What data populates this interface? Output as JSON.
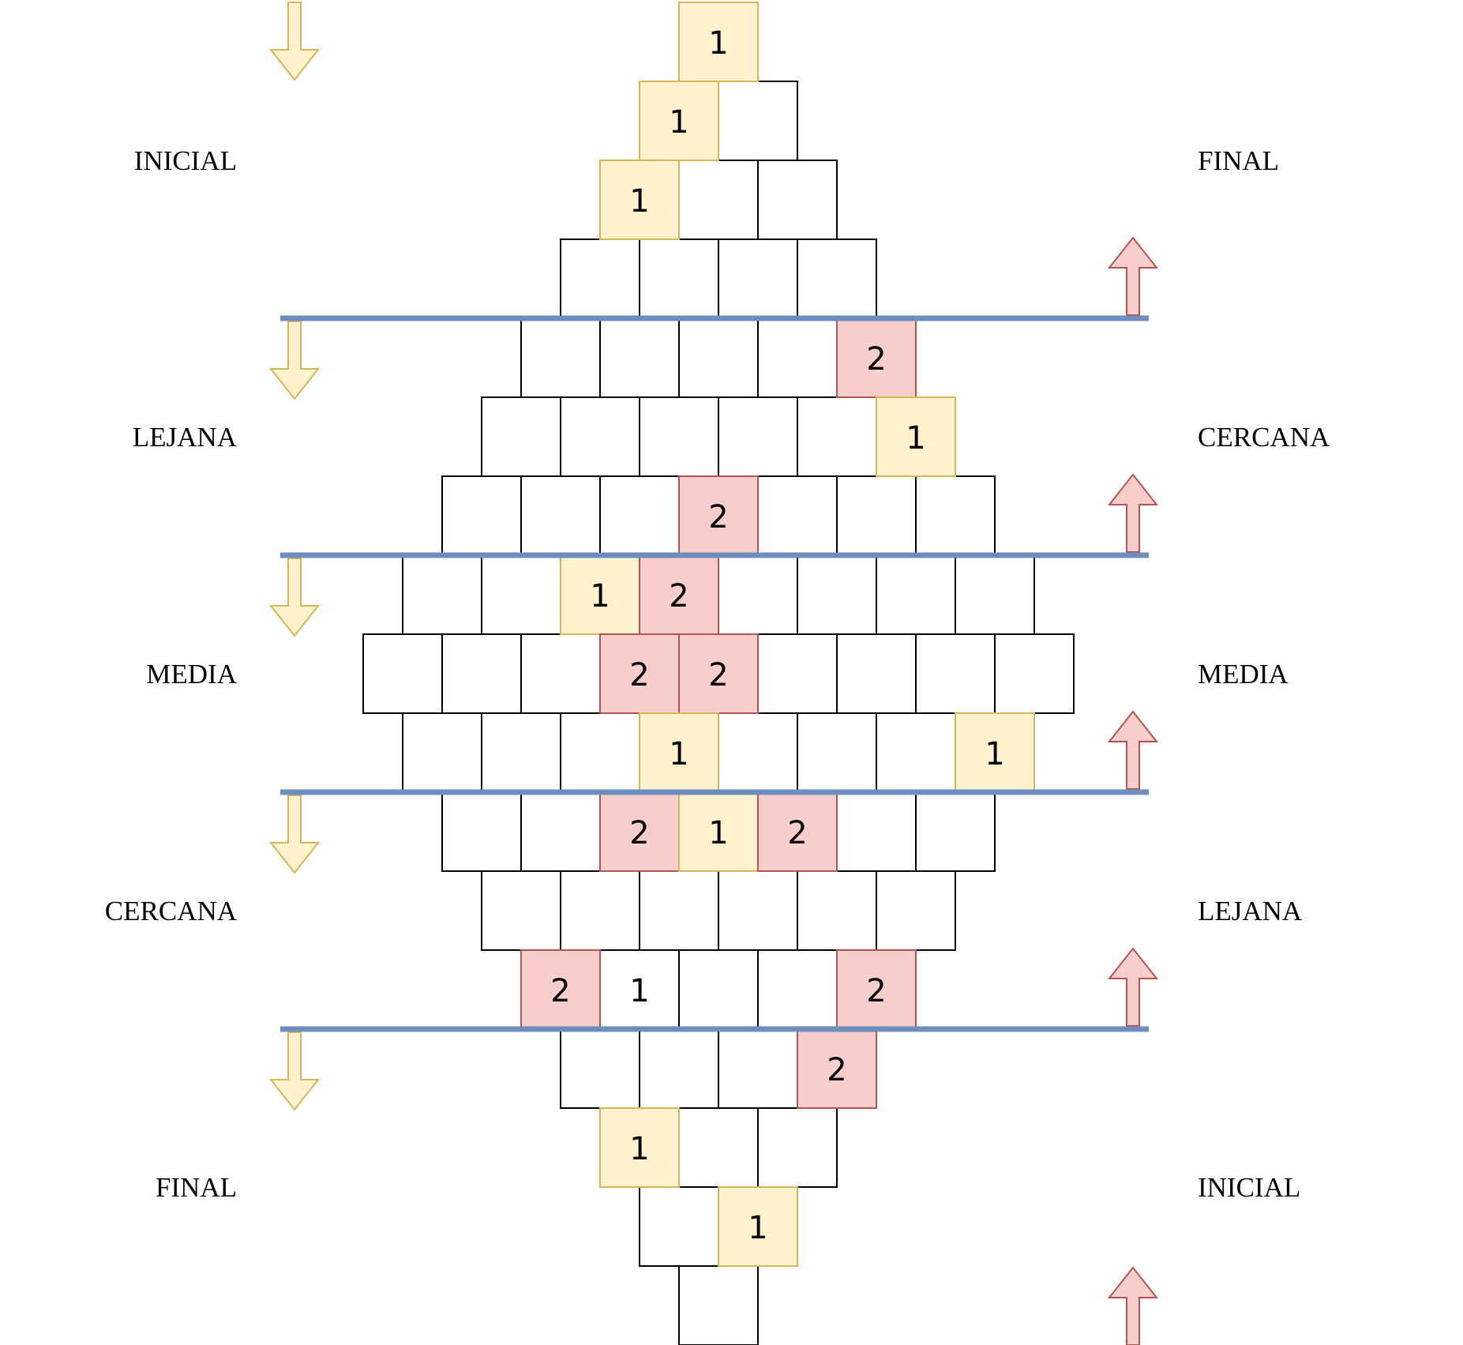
{
  "colors": {
    "yellow_fill": "#fff2cc",
    "yellow_stroke": "#d6b656",
    "red_fill": "#f8cecc",
    "red_stroke": "#b85450",
    "divider": "#6c8ebf",
    "grid_stroke": "#000000"
  },
  "zones_left": [
    {
      "label": "INICIAL"
    },
    {
      "label": "LEJANA"
    },
    {
      "label": "MEDIA"
    },
    {
      "label": "CERCANA"
    },
    {
      "label": "FINAL"
    }
  ],
  "zones_right": [
    {
      "label": "FINAL"
    },
    {
      "label": "CERCANA"
    },
    {
      "label": "MEDIA"
    },
    {
      "label": "LEJANA"
    },
    {
      "label": "INICIAL"
    }
  ],
  "arrows": {
    "left": {
      "direction": "down",
      "icon": "arrow-down-icon",
      "color": "yellow",
      "count": 5
    },
    "right": {
      "direction": "up",
      "icon": "arrow-up-icon",
      "color": "red",
      "count": 5
    }
  },
  "rows": [
    {
      "cells": [
        {
          "text": "1",
          "style": "yellow"
        }
      ]
    },
    {
      "cells": [
        {
          "text": "1",
          "style": "yellow"
        },
        {
          "text": "",
          "style": "plain"
        }
      ]
    },
    {
      "cells": [
        {
          "text": "1",
          "style": "yellow"
        },
        {
          "text": "",
          "style": "plain"
        },
        {
          "text": "",
          "style": "plain"
        }
      ]
    },
    {
      "cells": [
        {
          "text": "",
          "style": "plain"
        },
        {
          "text": "",
          "style": "plain"
        },
        {
          "text": "",
          "style": "plain"
        },
        {
          "text": "",
          "style": "plain"
        }
      ]
    },
    {
      "cells": [
        {
          "text": "",
          "style": "plain"
        },
        {
          "text": "",
          "style": "plain"
        },
        {
          "text": "",
          "style": "plain"
        },
        {
          "text": "",
          "style": "plain"
        },
        {
          "text": "2",
          "style": "red"
        }
      ]
    },
    {
      "cells": [
        {
          "text": "",
          "style": "plain"
        },
        {
          "text": "",
          "style": "plain"
        },
        {
          "text": "",
          "style": "plain"
        },
        {
          "text": "",
          "style": "plain"
        },
        {
          "text": "",
          "style": "plain"
        },
        {
          "text": "1",
          "style": "yellow"
        }
      ]
    },
    {
      "cells": [
        {
          "text": "",
          "style": "plain"
        },
        {
          "text": "",
          "style": "plain"
        },
        {
          "text": "",
          "style": "plain"
        },
        {
          "text": "2",
          "style": "red"
        },
        {
          "text": "",
          "style": "plain"
        },
        {
          "text": "",
          "style": "plain"
        },
        {
          "text": "",
          "style": "plain"
        }
      ]
    },
    {
      "cells": [
        {
          "text": "",
          "style": "plain"
        },
        {
          "text": "",
          "style": "plain"
        },
        {
          "text": "1",
          "style": "yellow"
        },
        {
          "text": "2",
          "style": "red"
        },
        {
          "text": "",
          "style": "plain"
        },
        {
          "text": "",
          "style": "plain"
        },
        {
          "text": "",
          "style": "plain"
        },
        {
          "text": "",
          "style": "plain"
        }
      ]
    },
    {
      "cells": [
        {
          "text": "",
          "style": "plain"
        },
        {
          "text": "",
          "style": "plain"
        },
        {
          "text": "",
          "style": "plain"
        },
        {
          "text": "2",
          "style": "red"
        },
        {
          "text": "2",
          "style": "red"
        },
        {
          "text": "",
          "style": "plain"
        },
        {
          "text": "",
          "style": "plain"
        },
        {
          "text": "",
          "style": "plain"
        },
        {
          "text": "",
          "style": "plain"
        }
      ]
    },
    {
      "cells": [
        {
          "text": "",
          "style": "plain"
        },
        {
          "text": "",
          "style": "plain"
        },
        {
          "text": "",
          "style": "plain"
        },
        {
          "text": "1",
          "style": "yellow"
        },
        {
          "text": "",
          "style": "plain"
        },
        {
          "text": "",
          "style": "plain"
        },
        {
          "text": "",
          "style": "plain"
        },
        {
          "text": "1",
          "style": "yellow"
        }
      ]
    },
    {
      "cells": [
        {
          "text": "",
          "style": "plain"
        },
        {
          "text": "",
          "style": "plain"
        },
        {
          "text": "2",
          "style": "red"
        },
        {
          "text": "1",
          "style": "yellow"
        },
        {
          "text": "2",
          "style": "red"
        },
        {
          "text": "",
          "style": "plain"
        },
        {
          "text": "",
          "style": "plain"
        }
      ]
    },
    {
      "cells": [
        {
          "text": "",
          "style": "plain"
        },
        {
          "text": "",
          "style": "plain"
        },
        {
          "text": "",
          "style": "plain"
        },
        {
          "text": "",
          "style": "plain"
        },
        {
          "text": "",
          "style": "plain"
        },
        {
          "text": "",
          "style": "plain"
        }
      ]
    },
    {
      "cells": [
        {
          "text": "2",
          "style": "red"
        },
        {
          "text": "1",
          "style": "plain"
        },
        {
          "text": "",
          "style": "plain"
        },
        {
          "text": "",
          "style": "plain"
        },
        {
          "text": "2",
          "style": "red"
        }
      ]
    },
    {
      "cells": [
        {
          "text": "",
          "style": "plain"
        },
        {
          "text": "",
          "style": "plain"
        },
        {
          "text": "",
          "style": "plain"
        },
        {
          "text": "2",
          "style": "red"
        }
      ]
    },
    {
      "cells": [
        {
          "text": "1",
          "style": "yellow"
        },
        {
          "text": "",
          "style": "plain"
        },
        {
          "text": "",
          "style": "plain"
        }
      ]
    },
    {
      "cells": [
        {
          "text": "",
          "style": "plain"
        },
        {
          "text": "1",
          "style": "yellow"
        }
      ]
    },
    {
      "cells": [
        {
          "text": "",
          "style": "plain"
        }
      ]
    }
  ]
}
